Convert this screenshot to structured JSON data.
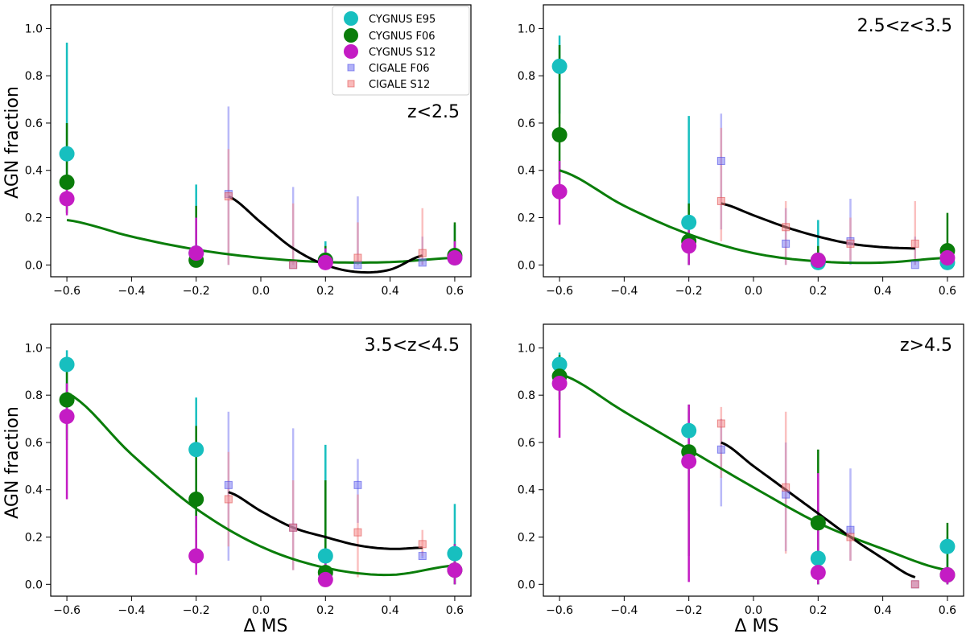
{
  "figure": {
    "xlabel": "Δ MS",
    "ylabel": "AGN fraction"
  },
  "legend": [
    {
      "name": "CYGNUS E95",
      "color": "#17bfbf",
      "marker": "circle"
    },
    {
      "name": "CYGNUS F06",
      "color": "#0a7d0a",
      "marker": "circle"
    },
    {
      "name": "CYGNUS S12",
      "color": "#c41cc4",
      "marker": "circle"
    },
    {
      "name": "CIGALE F06",
      "color": "#7f7ff2",
      "marker": "square"
    },
    {
      "name": "CIGALE S12",
      "color": "#f58c8c",
      "marker": "square"
    }
  ],
  "chart_data": [
    {
      "type": "scatter",
      "annotation": "z<2.5",
      "xlim": [
        -0.65,
        0.65
      ],
      "ylim": [
        -0.05,
        1.1
      ],
      "xticks": [
        "−0.6",
        "−0.4",
        "−0.2",
        "0.0",
        "0.2",
        "0.4",
        "0.6"
      ],
      "yticks": [
        "0.0",
        "0.2",
        "0.4",
        "0.6",
        "0.8",
        "1.0"
      ],
      "series": [
        {
          "name": "CYGNUS E95",
          "points": [
            [
              -0.6,
              0.47,
              0.25,
              0.94
            ],
            [
              -0.2,
              0.05,
              0.0,
              0.34
            ],
            [
              0.2,
              0.02,
              0.0,
              0.1
            ],
            [
              0.6,
              0.03,
              0.0,
              0.17
            ]
          ]
        },
        {
          "name": "CYGNUS F06",
          "points": [
            [
              -0.6,
              0.35,
              0.22,
              0.6
            ],
            [
              -0.2,
              0.02,
              0.0,
              0.25
            ],
            [
              0.2,
              0.02,
              0.0,
              0.08
            ],
            [
              0.6,
              0.04,
              0.0,
              0.18
            ]
          ]
        },
        {
          "name": "CYGNUS S12",
          "points": [
            [
              -0.6,
              0.28,
              0.21,
              0.36
            ],
            [
              -0.2,
              0.05,
              0.0,
              0.2
            ],
            [
              0.2,
              0.01,
              0.0,
              0.07
            ],
            [
              0.6,
              0.03,
              0.0,
              0.1
            ]
          ]
        },
        {
          "name": "CIGALE F06",
          "points": [
            [
              -0.1,
              0.3,
              0.0,
              0.67
            ],
            [
              0.1,
              0.0,
              0.0,
              0.33
            ],
            [
              0.3,
              0.0,
              0.0,
              0.29
            ],
            [
              0.5,
              0.01,
              0.0,
              0.12
            ]
          ]
        },
        {
          "name": "CIGALE S12",
          "points": [
            [
              -0.1,
              0.29,
              0.0,
              0.49
            ],
            [
              0.1,
              0.0,
              0.0,
              0.26
            ],
            [
              0.3,
              0.03,
              0.0,
              0.18
            ],
            [
              0.5,
              0.05,
              0.0,
              0.24
            ]
          ]
        }
      ],
      "fits": [
        {
          "color": "#0a7d0a",
          "x": [
            -0.6,
            -0.4,
            -0.2,
            0.0,
            0.2,
            0.4,
            0.6
          ],
          "y": [
            0.19,
            0.12,
            0.065,
            0.03,
            0.012,
            0.012,
            0.03
          ]
        },
        {
          "color": "#000000",
          "x": [
            -0.1,
            0.0,
            0.1,
            0.2,
            0.3,
            0.4,
            0.5
          ],
          "y": [
            0.29,
            0.18,
            0.07,
            0.0,
            -0.03,
            -0.02,
            0.04
          ]
        }
      ]
    },
    {
      "type": "scatter",
      "annotation": "2.5<z<3.5",
      "xlim": [
        -0.65,
        0.65
      ],
      "ylim": [
        -0.05,
        1.1
      ],
      "xticks": [
        "−0.6",
        "−0.4",
        "−0.2",
        "0.0",
        "0.2",
        "0.4",
        "0.6"
      ],
      "yticks": [
        "0.0",
        "0.2",
        "0.4",
        "0.6",
        "0.8",
        "1.0"
      ],
      "series": [
        {
          "name": "CYGNUS E95",
          "points": [
            [
              -0.6,
              0.84,
              0.64,
              0.97
            ],
            [
              -0.2,
              0.18,
              0.0,
              0.63
            ],
            [
              0.2,
              0.01,
              0.0,
              0.19
            ],
            [
              0.6,
              0.01,
              0.0,
              0.07
            ]
          ]
        },
        {
          "name": "CYGNUS F06",
          "points": [
            [
              -0.6,
              0.55,
              0.36,
              0.93
            ],
            [
              -0.2,
              0.1,
              0.0,
              0.26
            ],
            [
              0.2,
              0.02,
              0.0,
              0.08
            ],
            [
              0.6,
              0.06,
              0.0,
              0.22
            ]
          ]
        },
        {
          "name": "CYGNUS S12",
          "points": [
            [
              -0.6,
              0.31,
              0.17,
              0.44
            ],
            [
              -0.2,
              0.08,
              0.0,
              0.2
            ],
            [
              0.2,
              0.02,
              0.0,
              0.05
            ],
            [
              0.6,
              0.03,
              0.0,
              0.08
            ]
          ]
        },
        {
          "name": "CIGALE F06",
          "points": [
            [
              -0.1,
              0.44,
              0.15,
              0.64
            ],
            [
              0.1,
              0.09,
              0.0,
              0.24
            ],
            [
              0.3,
              0.1,
              0.0,
              0.28
            ],
            [
              0.5,
              0.0,
              0.0,
              0.12
            ]
          ]
        },
        {
          "name": "CIGALE S12",
          "points": [
            [
              -0.1,
              0.27,
              0.1,
              0.58
            ],
            [
              0.1,
              0.16,
              0.0,
              0.27
            ],
            [
              0.3,
              0.09,
              0.02,
              0.2
            ],
            [
              0.5,
              0.09,
              0.0,
              0.27
            ]
          ]
        }
      ],
      "fits": [
        {
          "color": "#0a7d0a",
          "x": [
            -0.6,
            -0.4,
            -0.2,
            0.0,
            0.2,
            0.4,
            0.6
          ],
          "y": [
            0.4,
            0.25,
            0.13,
            0.05,
            0.015,
            0.01,
            0.03
          ]
        },
        {
          "color": "#000000",
          "x": [
            -0.1,
            0.0,
            0.1,
            0.2,
            0.3,
            0.4,
            0.5
          ],
          "y": [
            0.26,
            0.21,
            0.16,
            0.12,
            0.09,
            0.075,
            0.07
          ]
        }
      ]
    },
    {
      "type": "scatter",
      "annotation": "3.5<z<4.5",
      "xlim": [
        -0.65,
        0.65
      ],
      "ylim": [
        -0.05,
        1.1
      ],
      "xticks": [
        "−0.6",
        "−0.4",
        "−0.2",
        "0.0",
        "0.2",
        "0.4",
        "0.6"
      ],
      "yticks": [
        "0.0",
        "0.2",
        "0.4",
        "0.6",
        "0.8",
        "1.0"
      ],
      "series": [
        {
          "name": "CYGNUS E95",
          "points": [
            [
              -0.6,
              0.93,
              0.72,
              0.99
            ],
            [
              -0.2,
              0.57,
              0.24,
              0.79
            ],
            [
              0.2,
              0.12,
              0.0,
              0.59
            ],
            [
              0.6,
              0.13,
              0.0,
              0.34
            ]
          ]
        },
        {
          "name": "CYGNUS F06",
          "points": [
            [
              -0.6,
              0.78,
              0.61,
              0.92
            ],
            [
              -0.2,
              0.36,
              0.14,
              0.67
            ],
            [
              0.2,
              0.05,
              0.0,
              0.44
            ],
            [
              0.6,
              0.06,
              0.0,
              0.17
            ]
          ]
        },
        {
          "name": "CYGNUS S12",
          "points": [
            [
              -0.6,
              0.71,
              0.36,
              0.85
            ],
            [
              -0.2,
              0.12,
              0.04,
              0.29
            ],
            [
              0.2,
              0.02,
              0.0,
              0.1
            ],
            [
              0.6,
              0.06,
              0.0,
              0.17
            ]
          ]
        },
        {
          "name": "CIGALE F06",
          "points": [
            [
              -0.1,
              0.42,
              0.1,
              0.73
            ],
            [
              0.1,
              0.24,
              0.06,
              0.66
            ],
            [
              0.3,
              0.42,
              0.26,
              0.53
            ],
            [
              0.5,
              0.12,
              0.11,
              0.14
            ]
          ]
        },
        {
          "name": "CIGALE S12",
          "points": [
            [
              -0.1,
              0.36,
              0.16,
              0.56
            ],
            [
              0.1,
              0.24,
              0.06,
              0.44
            ],
            [
              0.3,
              0.22,
              0.03,
              0.38
            ],
            [
              0.5,
              0.17,
              0.12,
              0.23
            ]
          ]
        }
      ],
      "fits": [
        {
          "color": "#0a7d0a",
          "x": [
            -0.6,
            -0.4,
            -0.2,
            0.0,
            0.2,
            0.4,
            0.6
          ],
          "y": [
            0.81,
            0.55,
            0.32,
            0.16,
            0.07,
            0.04,
            0.08
          ]
        },
        {
          "color": "#000000",
          "x": [
            -0.1,
            0.0,
            0.1,
            0.2,
            0.3,
            0.4,
            0.5
          ],
          "y": [
            0.39,
            0.31,
            0.24,
            0.2,
            0.165,
            0.15,
            0.155
          ]
        }
      ]
    },
    {
      "type": "scatter",
      "annotation": "z>4.5",
      "xlim": [
        -0.65,
        0.65
      ],
      "ylim": [
        -0.05,
        1.1
      ],
      "xticks": [
        "−0.6",
        "−0.4",
        "−0.2",
        "0.0",
        "0.2",
        "0.4",
        "0.6"
      ],
      "yticks": [
        "0.0",
        "0.2",
        "0.4",
        "0.6",
        "0.8",
        "1.0"
      ],
      "series": [
        {
          "name": "CYGNUS E95",
          "points": [
            [
              -0.6,
              0.93,
              0.88,
              0.98
            ],
            [
              -0.2,
              0.65,
              0.31,
              0.73
            ],
            [
              0.2,
              0.11,
              0.0,
              0.32
            ],
            [
              0.6,
              0.16,
              0.0,
              0.2
            ]
          ]
        },
        {
          "name": "CYGNUS F06",
          "points": [
            [
              -0.6,
              0.88,
              0.78,
              0.97
            ],
            [
              -0.2,
              0.56,
              0.12,
              0.76
            ],
            [
              0.2,
              0.26,
              0.0,
              0.57
            ],
            [
              0.6,
              0.04,
              0.0,
              0.26
            ]
          ]
        },
        {
          "name": "CYGNUS S12",
          "points": [
            [
              -0.6,
              0.85,
              0.62,
              0.93
            ],
            [
              -0.2,
              0.52,
              0.01,
              0.76
            ],
            [
              0.2,
              0.05,
              0.0,
              0.47
            ],
            [
              0.6,
              0.04,
              0.0,
              0.06
            ]
          ]
        },
        {
          "name": "CIGALE F06",
          "points": [
            [
              -0.1,
              0.57,
              0.33,
              0.7
            ],
            [
              0.1,
              0.38,
              0.14,
              0.6
            ],
            [
              0.3,
              0.23,
              0.1,
              0.49
            ],
            [
              0.5,
              0.0,
              0.0,
              0.0
            ]
          ]
        },
        {
          "name": "CIGALE S12",
          "points": [
            [
              -0.1,
              0.68,
              0.45,
              0.75
            ],
            [
              0.1,
              0.41,
              0.13,
              0.73
            ],
            [
              0.3,
              0.2,
              0.1,
              0.24
            ],
            [
              0.5,
              0.0,
              0.0,
              0.0
            ]
          ]
        }
      ],
      "fits": [
        {
          "color": "#0a7d0a",
          "x": [
            -0.6,
            -0.4,
            -0.2,
            0.0,
            0.2,
            0.4,
            0.6
          ],
          "y": [
            0.89,
            0.73,
            0.57,
            0.41,
            0.26,
            0.15,
            0.06
          ]
        },
        {
          "color": "#000000",
          "x": [
            -0.1,
            0.0,
            0.1,
            0.2,
            0.3,
            0.4,
            0.5
          ],
          "y": [
            0.6,
            0.5,
            0.4,
            0.3,
            0.2,
            0.11,
            0.03
          ]
        }
      ]
    }
  ]
}
